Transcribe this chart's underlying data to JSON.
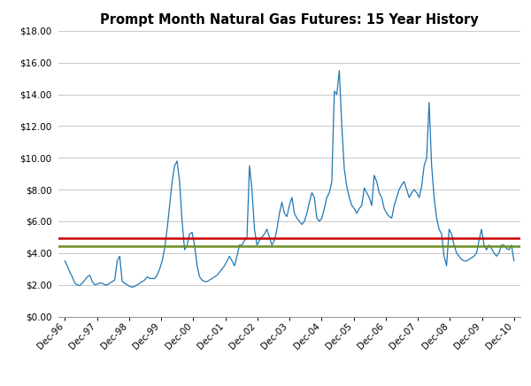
{
  "title": "Prompt Month Natural Gas Futures: 15 Year History",
  "x_labels": [
    "Dec-96",
    "Dec-97",
    "Dec-98",
    "Dec-99",
    "Dec-00",
    "Dec-01",
    "Dec-02",
    "Dec-03",
    "Dec-04",
    "Dec-05",
    "Dec-06",
    "Dec-07",
    "Dec-08",
    "Dec-09",
    "Dec-10"
  ],
  "ylim": [
    0,
    18
  ],
  "yticks": [
    0,
    2,
    4,
    6,
    8,
    10,
    12,
    14,
    16,
    18
  ],
  "red_line": 4.95,
  "green_line": 4.45,
  "line_color": "#1F77B4",
  "red_color": "#CC0000",
  "green_color": "#6B8E23",
  "bg_color": "#FFFFFF",
  "grid_color": "#C8C8C8",
  "prices": [
    3.5,
    3.2,
    2.8,
    2.5,
    2.1,
    2.0,
    1.95,
    2.1,
    2.3,
    2.5,
    2.6,
    2.2,
    2.0,
    2.05,
    2.1,
    2.1,
    2.0,
    2.0,
    2.1,
    2.2,
    2.3,
    3.5,
    3.8,
    2.2,
    2.1,
    2.0,
    1.9,
    1.85,
    1.9,
    2.0,
    2.1,
    2.2,
    2.3,
    2.5,
    2.4,
    2.4,
    2.4,
    2.6,
    3.0,
    3.5,
    4.3,
    5.5,
    7.0,
    8.5,
    9.5,
    9.8,
    8.5,
    6.0,
    4.2,
    4.5,
    5.2,
    5.3,
    4.5,
    3.2,
    2.5,
    2.3,
    2.2,
    2.2,
    2.3,
    2.4,
    2.5,
    2.6,
    2.8,
    3.0,
    3.2,
    3.5,
    3.8,
    3.5,
    3.2,
    3.8,
    4.5,
    4.5,
    4.8,
    5.0,
    9.5,
    8.0,
    5.5,
    4.5,
    4.8,
    5.0,
    5.2,
    5.5,
    5.0,
    4.5,
    4.8,
    5.5,
    6.5,
    7.2,
    6.5,
    6.3,
    7.0,
    7.5,
    6.5,
    6.2,
    6.0,
    5.8,
    6.0,
    6.5,
    7.2,
    7.8,
    7.5,
    6.2,
    6.0,
    6.2,
    6.8,
    7.5,
    7.8,
    8.5,
    14.2,
    14.0,
    15.5,
    12.0,
    9.3,
    8.2,
    7.5,
    7.0,
    6.8,
    6.5,
    6.8,
    7.0,
    8.1,
    7.8,
    7.5,
    7.0,
    8.9,
    8.5,
    7.8,
    7.5,
    6.8,
    6.5,
    6.3,
    6.2,
    7.0,
    7.5,
    8.0,
    8.3,
    8.5,
    8.0,
    7.5,
    7.8,
    8.0,
    7.8,
    7.5,
    8.2,
    9.5,
    10.0,
    13.5,
    9.5,
    7.5,
    6.2,
    5.5,
    5.2,
    3.8,
    3.2,
    5.5,
    5.2,
    4.5,
    4.0,
    3.8,
    3.6,
    3.5,
    3.5,
    3.6,
    3.7,
    3.8,
    4.0,
    4.8,
    5.5,
    4.5,
    4.2,
    4.5,
    4.3,
    4.0,
    3.8,
    4.0,
    4.5,
    4.5,
    4.3,
    4.2,
    4.5,
    3.5
  ]
}
